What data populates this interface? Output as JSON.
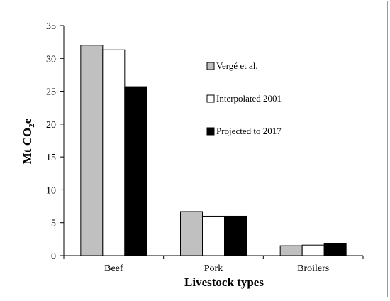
{
  "chart_data": {
    "type": "bar",
    "categories": [
      "Beef",
      "Pork",
      "Broilers"
    ],
    "series": [
      {
        "name": "Vergé et al.",
        "values": [
          32.0,
          6.7,
          1.5
        ],
        "color": "#c0c0c0"
      },
      {
        "name": "Interpolated 2001",
        "values": [
          31.3,
          6.0,
          1.6
        ],
        "color": "#ffffff"
      },
      {
        "name": "Projected to 2017",
        "values": [
          25.7,
          6.0,
          1.8
        ],
        "color": "#000000"
      }
    ],
    "xlabel": "Livestock types",
    "ylabel": {
      "main": "Mt CO",
      "sub": "2",
      "tail": "e"
    },
    "ylim": [
      0,
      35
    ],
    "yticks": [
      0,
      5,
      10,
      15,
      20,
      25,
      30,
      35
    ],
    "legend_position": "upper-right inside plot",
    "grid": false
  }
}
